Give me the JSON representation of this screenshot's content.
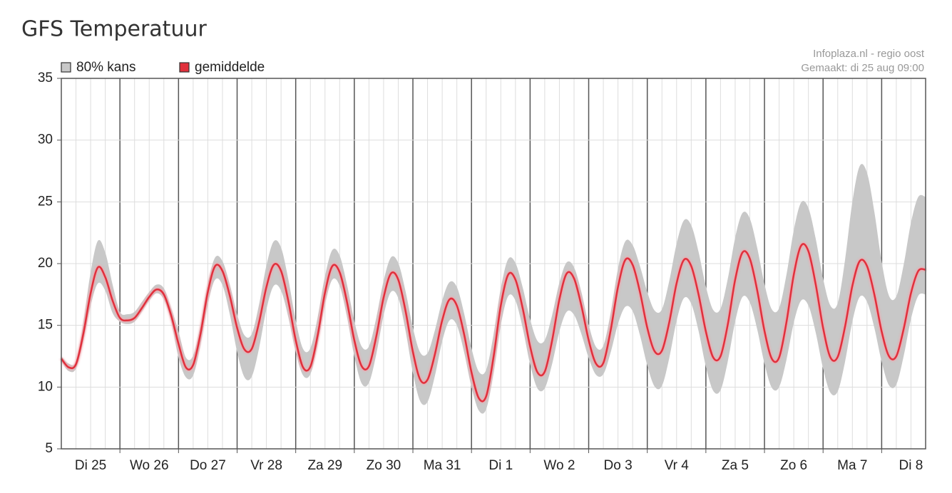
{
  "chart_data": {
    "type": "band-line",
    "title": "GFS Temperatuur",
    "credits": [
      "Infoplaza.nl - regio oost",
      "Gemaakt: di 25 aug 09:00"
    ],
    "categories": [
      null,
      null,
      null,
      null,
      "Di 25",
      null,
      null,
      null,
      null,
      null,
      null,
      null,
      "Wo 26",
      null,
      null,
      null,
      null,
      null,
      null,
      null,
      "Do 27",
      null,
      null,
      null,
      null,
      null,
      null,
      null,
      "Vr 28",
      null,
      null,
      null,
      null,
      null,
      null,
      null,
      "Za 29",
      null,
      null,
      null,
      null,
      null,
      null,
      null,
      "Zo 30",
      null,
      null,
      null,
      null,
      null,
      null,
      null,
      "Ma 31",
      null,
      null,
      null,
      null,
      null,
      null,
      null,
      "Di 1",
      null,
      null,
      null,
      null,
      null,
      null,
      null,
      "Wo 2",
      null,
      null,
      null,
      null,
      null,
      null,
      null,
      "Do 3",
      null,
      null,
      null,
      null,
      null,
      null,
      null,
      "Vr 4",
      null,
      null,
      null,
      null,
      null,
      null,
      null,
      "Za 5",
      null,
      null,
      null,
      null,
      null,
      null,
      null,
      "Zo 6",
      null,
      null,
      null,
      null,
      null,
      null,
      null,
      "Ma 7",
      null,
      null,
      null,
      null,
      null,
      null,
      null,
      "Di 8",
      null,
      null
    ],
    "series": [
      {
        "name": "80% kans",
        "color": "#c8c8c8",
        "high": [
          12.5,
          11.9,
          12.1,
          15.2,
          19.3,
          21.85,
          20.9,
          18.3,
          16.1,
          15.9,
          16.1,
          16.9,
          17.7,
          18.3,
          18.0,
          16.4,
          14.5,
          12.4,
          12.55,
          15.05,
          18.4,
          20.5,
          20.2,
          18.3,
          15.9,
          14.2,
          14.3,
          16.7,
          19.85,
          21.8,
          21.3,
          18.7,
          15.4,
          13.1,
          13.15,
          15.65,
          19.0,
          21.1,
          20.65,
          18.3,
          15.35,
          13.3,
          13.3,
          15.6,
          18.6,
          20.5,
          20.05,
          17.75,
          14.8,
          12.8,
          12.75,
          14.6,
          17.0,
          18.5,
          18.1,
          15.95,
          13.15,
          11.25,
          11.4,
          14.2,
          18.0,
          20.35,
          20.05,
          18.05,
          15.5,
          13.75,
          13.8,
          15.8,
          18.45,
          20.1,
          19.7,
          17.7,
          15.05,
          13.25,
          13.35,
          16.0,
          19.6,
          21.8,
          21.5,
          19.8,
          17.7,
          16.2,
          16.3,
          18.6,
          21.6,
          23.5,
          23.1,
          20.95,
          18.15,
          16.25,
          16.35,
          18.8,
          22.1,
          24.1,
          23.65,
          21.3,
          18.35,
          16.3,
          16.4,
          19.1,
          22.7,
          24.95,
          24.5,
          22.0,
          18.8,
          16.6,
          16.8,
          20.3,
          25.0,
          27.9,
          27.35,
          24.2,
          20.15,
          17.4,
          17.35,
          19.9,
          23.3,
          25.4,
          25.4
        ],
        "low": [
          12.1,
          11.3,
          11.5,
          13.7,
          16.6,
          18.4,
          17.8,
          16.0,
          15.3,
          15.1,
          15.3,
          16.1,
          17.0,
          17.6,
          17.1,
          15.3,
          12.4,
          10.8,
          10.95,
          13.4,
          16.7,
          18.7,
          18.25,
          15.9,
          12.85,
          10.8,
          10.85,
          13.15,
          16.3,
          18.2,
          17.8,
          15.65,
          12.85,
          10.95,
          11.05,
          13.45,
          16.7,
          18.7,
          18.2,
          15.7,
          12.5,
          10.3,
          10.35,
          12.65,
          15.8,
          17.7,
          17.2,
          14.55,
          11.15,
          8.85,
          8.8,
          10.9,
          13.7,
          15.4,
          15.0,
          12.8,
          10.0,
          8.1,
          8.2,
          11.1,
          15.0,
          17.35,
          17.0,
          14.75,
          11.85,
          9.9,
          9.9,
          11.85,
          14.5,
          16.1,
          15.85,
          14.3,
          12.35,
          11.0,
          11.05,
          12.8,
          15.1,
          16.5,
          16.15,
          14.2,
          11.75,
          10.05,
          10.1,
          12.35,
          15.35,
          17.2,
          16.75,
          14.55,
          11.65,
          9.7,
          9.75,
          12.1,
          15.3,
          17.3,
          16.85,
          14.7,
          11.9,
          9.95,
          10.0,
          12.2,
          15.2,
          17.0,
          16.6,
          14.4,
          11.5,
          9.55,
          9.65,
          12.05,
          15.3,
          17.3,
          16.9,
          14.8,
          12.05,
          10.15,
          10.2,
          12.5,
          15.5,
          17.4,
          17.5
        ]
      },
      {
        "name": "gemiddelde",
        "color": "#e0303c",
        "values": [
          12.3,
          11.6,
          11.85,
          14.3,
          17.6,
          19.7,
          18.9,
          17.0,
          15.6,
          15.4,
          15.6,
          16.4,
          17.3,
          17.9,
          17.5,
          15.8,
          13.5,
          11.6,
          11.8,
          14.3,
          17.7,
          19.8,
          19.4,
          17.4,
          14.8,
          13.05,
          13.1,
          15.25,
          18.1,
          19.9,
          19.4,
          16.95,
          13.8,
          11.6,
          11.65,
          14.2,
          17.65,
          19.8,
          19.3,
          16.9,
          13.8,
          11.7,
          11.7,
          14.1,
          17.25,
          19.2,
          18.7,
          16.15,
          12.85,
          10.6,
          10.6,
          12.65,
          15.4,
          17.1,
          16.6,
          14.25,
          11.2,
          9.1,
          9.25,
          12.4,
          16.6,
          19.1,
          18.7,
          16.35,
          13.3,
          11.2,
          11.25,
          13.75,
          17.1,
          19.2,
          18.8,
          16.6,
          13.8,
          11.9,
          11.95,
          14.6,
          18.1,
          20.3,
          19.9,
          17.7,
          14.8,
          12.9,
          12.95,
          15.25,
          18.4,
          20.3,
          19.8,
          17.5,
          14.5,
          12.4,
          12.5,
          15.1,
          18.7,
          20.9,
          20.4,
          17.85,
          14.55,
          12.3,
          12.4,
          15.25,
          19.1,
          21.45,
          21.0,
          18.3,
          14.8,
          12.4,
          12.45,
          14.9,
          18.2,
          20.2,
          19.8,
          17.5,
          14.5,
          12.5,
          12.5,
          14.7,
          17.6,
          19.4,
          19.5
        ]
      }
    ],
    "ylim": [
      5,
      35
    ],
    "yticks": [
      5,
      10,
      15,
      20,
      25,
      30,
      35
    ],
    "grid": true
  }
}
